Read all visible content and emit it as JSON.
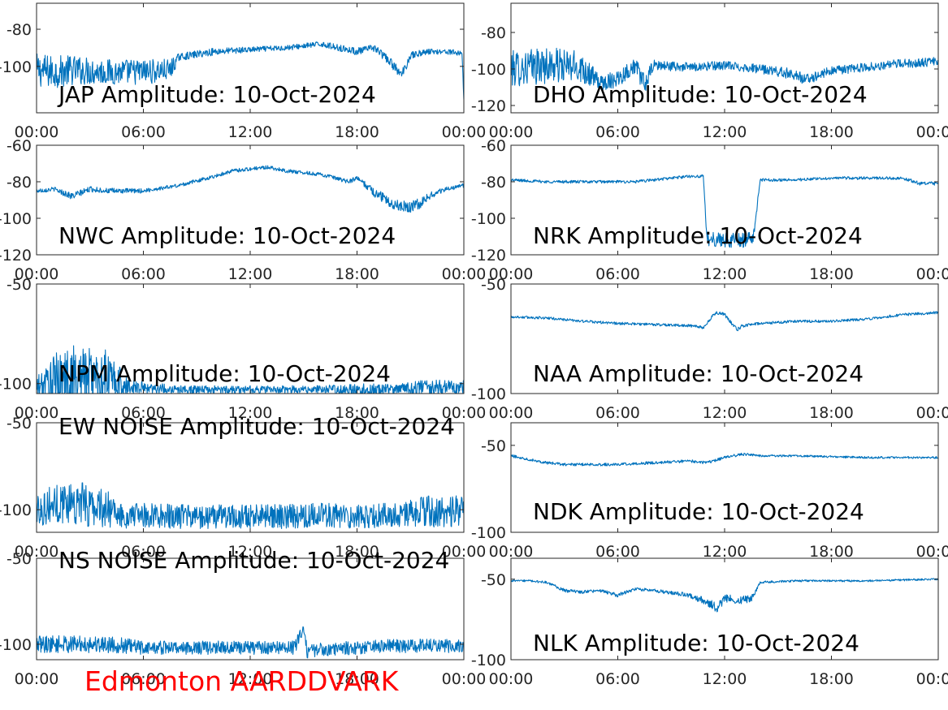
{
  "footer_label": "Edmonton AARDDVARK",
  "colors": {
    "trace": "#0072bd",
    "footer": "#ff0000",
    "axes": "#262626",
    "background": "#ffffff"
  },
  "chart_data": [
    {
      "type": "line",
      "title": "JAP Amplitude: 10-Oct-2024",
      "xlabel": "",
      "ylabel": "",
      "x_ticks": [
        "00:00",
        "06:00",
        "12:00",
        "18:00",
        "00:00"
      ],
      "y_ticks": [
        -80,
        -100
      ],
      "y_tick_labels": [
        "-80",
        "-100"
      ],
      "ylim": [
        -125,
        -66
      ],
      "grid": false,
      "legend": "none",
      "series": [
        {
          "x_hours": [
            0,
            1,
            2,
            4,
            6,
            7.5,
            8,
            10,
            12,
            14,
            16,
            18,
            19,
            20,
            20.5,
            21,
            22,
            23,
            23.9,
            24
          ],
          "values": [
            -102,
            -103,
            -102,
            -103,
            -103,
            -102,
            -95,
            -92,
            -91,
            -90,
            -88,
            -92,
            -90,
            -99,
            -105,
            -94,
            -92,
            -92,
            -93,
            -116
          ],
          "noise": [
            9,
            9,
            8,
            7,
            7,
            6,
            2,
            2,
            1.5,
            1.5,
            1.5,
            2,
            2,
            2.5,
            3,
            2,
            1.5,
            1.5,
            1.5,
            4
          ]
        }
      ]
    },
    {
      "type": "line",
      "title": "DHO Amplitude: 10-Oct-2024",
      "xlabel": "",
      "ylabel": "",
      "x_ticks": [
        "00:00",
        "06:00",
        "12:00",
        "18:00",
        "00:00"
      ],
      "y_ticks": [
        -80,
        -100,
        -120
      ],
      "y_tick_labels": [
        "-80",
        "-100",
        "-120"
      ],
      "ylim": [
        -124,
        -64
      ],
      "grid": false,
      "legend": "none",
      "series": [
        {
          "x_hours": [
            0,
            2,
            4,
            5,
            6,
            7,
            7.5,
            8,
            10,
            12,
            14,
            16,
            16.5,
            18,
            20,
            22,
            24
          ],
          "values": [
            -100,
            -98,
            -99,
            -108,
            -105,
            -98,
            -109,
            -98,
            -99,
            -98,
            -100,
            -103,
            -106,
            -101,
            -99,
            -97,
            -96
          ],
          "noise": [
            10,
            10,
            9,
            4,
            5,
            4,
            6,
            3,
            2.5,
            2.5,
            2.5,
            3,
            3,
            2.5,
            2.5,
            2.5,
            2.5
          ]
        }
      ]
    },
    {
      "type": "line",
      "title": "NWC Amplitude: 10-Oct-2024",
      "xlabel": "",
      "ylabel": "",
      "x_ticks": [
        "00:00",
        "06:00",
        "12:00",
        "18:00",
        "00:00"
      ],
      "y_ticks": [
        -60,
        -80,
        -100,
        -120
      ],
      "y_tick_labels": [
        "-60",
        "-80",
        "-100",
        "-120"
      ],
      "ylim": [
        -120,
        -60
      ],
      "grid": false,
      "legend": "none",
      "series": [
        {
          "x_hours": [
            0,
            1,
            2,
            3,
            4,
            6,
            8,
            10,
            11,
            12,
            13,
            14,
            16,
            17.5,
            18,
            19,
            20,
            21,
            21.5,
            22,
            23,
            24
          ],
          "values": [
            -85,
            -84,
            -88,
            -84,
            -85,
            -85,
            -82,
            -77,
            -74,
            -73,
            -72,
            -74,
            -76,
            -80,
            -78,
            -86,
            -92,
            -94,
            -92,
            -88,
            -84,
            -82
          ],
          "noise": [
            1.2,
            1.2,
            2,
            1.5,
            1.5,
            1.2,
            1,
            1,
            1,
            1,
            1,
            1,
            1,
            1.2,
            1.2,
            2.5,
            3,
            3,
            3,
            2,
            1.2,
            1.2
          ]
        }
      ]
    },
    {
      "type": "line",
      "title": "NRK Amplitude: 10-Oct-2024",
      "xlabel": "",
      "ylabel": "",
      "x_ticks": [
        "00:00",
        "06:00",
        "12:00",
        "18:00",
        "00:00"
      ],
      "y_ticks": [
        -60,
        -80,
        -100,
        -120
      ],
      "y_tick_labels": [
        "-60",
        "-80",
        "-100",
        "-120"
      ],
      "ylim": [
        -120,
        -60
      ],
      "grid": false,
      "legend": "none",
      "series": [
        {
          "x_hours": [
            0,
            2,
            4,
            6,
            7,
            8,
            10,
            10.8,
            11,
            12,
            13,
            13.6,
            14,
            16,
            18,
            20,
            22,
            23,
            24
          ],
          "values": [
            -79,
            -80,
            -80,
            -80,
            -80,
            -79,
            -77,
            -77,
            -111,
            -112,
            -112,
            -111,
            -79,
            -79,
            -78,
            -78,
            -78,
            -81,
            -81
          ],
          "noise": [
            0.8,
            0.8,
            0.8,
            0.8,
            0.8,
            0.8,
            0.8,
            0.8,
            4,
            4,
            4,
            4,
            0.8,
            0.8,
            0.8,
            0.8,
            0.8,
            1,
            1
          ]
        }
      ]
    },
    {
      "type": "line",
      "title": "NPM Amplitude: 10-Oct-2024",
      "xlabel": "",
      "ylabel": "",
      "x_ticks": [
        "00:00",
        "06:00",
        "12:00",
        "18:00",
        "00:00"
      ],
      "y_ticks": [
        -50,
        -100
      ],
      "y_tick_labels": [
        "-50",
        "-100"
      ],
      "ylim": [
        -105,
        -50
      ],
      "grid": false,
      "legend": "none",
      "series": [
        {
          "x_hours": [
            0,
            1,
            2,
            3,
            4,
            5,
            6,
            8,
            10,
            12,
            14,
            16,
            18,
            20,
            22,
            24
          ],
          "values": [
            -102,
            -98,
            -96,
            -96,
            -97,
            -101,
            -102,
            -103,
            -103,
            -103,
            -103,
            -103,
            -103,
            -103,
            -102,
            -102
          ],
          "noise": [
            5,
            13,
            15,
            15,
            14,
            5,
            3,
            2,
            2,
            2,
            2,
            2,
            3,
            3,
            4,
            4
          ]
        }
      ]
    },
    {
      "type": "line",
      "title": "NAA Amplitude: 10-Oct-2024",
      "xlabel": "",
      "ylabel": "",
      "x_ticks": [
        "00:00",
        "06:00",
        "12:00",
        "18:00",
        "00:00"
      ],
      "y_ticks": [
        -50,
        -100
      ],
      "y_tick_labels": [
        "-50",
        "-100"
      ],
      "ylim": [
        -100,
        -50
      ],
      "grid": false,
      "legend": "none",
      "series": [
        {
          "x_hours": [
            0,
            2,
            4,
            6,
            8,
            10,
            10.8,
            11.5,
            12,
            12.7,
            13,
            14,
            16,
            18,
            20,
            22,
            24
          ],
          "values": [
            -65,
            -65.5,
            -67,
            -68,
            -68.5,
            -69,
            -70,
            -63,
            -64,
            -71,
            -69,
            -68,
            -67,
            -67,
            -66,
            -64,
            -63
          ],
          "noise": [
            0.6,
            0.6,
            0.6,
            0.6,
            0.6,
            0.6,
            0.8,
            0.8,
            0.8,
            0.8,
            0.8,
            0.6,
            0.6,
            0.6,
            0.6,
            0.6,
            0.6
          ]
        }
      ]
    },
    {
      "type": "line",
      "title": "EW NOISE Amplitude: 10-Oct-2024",
      "xlabel": "",
      "ylabel": "",
      "x_ticks": [
        "00:00",
        "06:00",
        "12:00",
        "18:00",
        "00:00"
      ],
      "y_ticks": [
        -50,
        -100
      ],
      "y_tick_labels": [
        "-50",
        "-100"
      ],
      "ylim": [
        -113,
        -50
      ],
      "grid": false,
      "legend": "none",
      "series": [
        {
          "x_hours": [
            0,
            1,
            2,
            3,
            4,
            4.5,
            6,
            8,
            10,
            12,
            14,
            16,
            18,
            20,
            22,
            24
          ],
          "values": [
            -100,
            -97,
            -95,
            -98,
            -99,
            -104,
            -103,
            -104,
            -104,
            -104,
            -104,
            -103,
            -104,
            -103,
            -101,
            -101
          ],
          "noise": [
            9,
            12,
            13,
            12,
            11,
            7,
            7,
            7,
            7,
            7,
            7,
            7,
            7,
            7,
            9,
            9
          ]
        }
      ]
    },
    {
      "type": "line",
      "title": "NDK Amplitude: 10-Oct-2024",
      "xlabel": "",
      "ylabel": "",
      "x_ticks": [
        "00:00",
        "06:00",
        "12:00",
        "18:00",
        "00:00"
      ],
      "y_ticks": [
        -50,
        -100
      ],
      "y_tick_labels": [
        "-50",
        "-100"
      ],
      "ylim": [
        -100,
        -37
      ],
      "grid": false,
      "legend": "none",
      "series": [
        {
          "x_hours": [
            0,
            1,
            2,
            3,
            4,
            6,
            8,
            10,
            11,
            12,
            13,
            14,
            16,
            18,
            20,
            22,
            24
          ],
          "values": [
            -56,
            -58,
            -60,
            -61,
            -61,
            -61,
            -60,
            -59,
            -60,
            -57,
            -55,
            -56,
            -56,
            -56.5,
            -57,
            -57,
            -57
          ],
          "noise": [
            0.8,
            0.8,
            0.8,
            0.8,
            0.8,
            0.8,
            0.8,
            0.8,
            0.8,
            0.8,
            0.8,
            0.6,
            0.6,
            0.6,
            0.6,
            0.6,
            0.6
          ]
        }
      ]
    },
    {
      "type": "line",
      "title": "NS NOISE Amplitude: 10-Oct-2024",
      "xlabel": "",
      "ylabel": "",
      "x_ticks": [
        "00:00",
        "06:00",
        "12:00",
        "18:00",
        "00:00"
      ],
      "y_ticks": [
        -50,
        -100
      ],
      "y_tick_labels": [
        "-50",
        "-100"
      ],
      "ylim": [
        -109,
        -50
      ],
      "grid": false,
      "legend": "none",
      "series": [
        {
          "x_hours": [
            0,
            2,
            4,
            6,
            8,
            10,
            12,
            14,
            14.5,
            15,
            15.2,
            16,
            18,
            20,
            22,
            24
          ],
          "values": [
            -100,
            -100,
            -100,
            -102,
            -102,
            -102,
            -102,
            -102,
            -102,
            -90,
            -104,
            -103,
            -102,
            -101,
            -101,
            -101
          ],
          "noise": [
            5,
            5,
            5,
            4,
            4,
            4,
            4,
            4,
            4,
            3,
            4,
            4,
            4,
            4,
            4,
            4
          ]
        }
      ]
    },
    {
      "type": "line",
      "title": "NLK Amplitude: 10-Oct-2024",
      "xlabel": "",
      "ylabel": "",
      "x_ticks": [
        "00:00",
        "06:00",
        "12:00",
        "18:00",
        "00:00"
      ],
      "y_ticks": [
        -50,
        -100
      ],
      "y_tick_labels": [
        "-50",
        "-100"
      ],
      "ylim": [
        -100,
        -37
      ],
      "grid": false,
      "legend": "none",
      "series": [
        {
          "x_hours": [
            0,
            1,
            2,
            3,
            4,
            5,
            6,
            7,
            8,
            10,
            11,
            11.6,
            12,
            13,
            13.5,
            14,
            16,
            18,
            20,
            22,
            24
          ],
          "values": [
            -51,
            -51,
            -52,
            -57,
            -58,
            -57,
            -60,
            -56,
            -57,
            -60,
            -64,
            -68,
            -62,
            -63,
            -62,
            -52,
            -51,
            -51,
            -51,
            -50.5,
            -50
          ],
          "noise": [
            0.6,
            0.6,
            0.8,
            1,
            1,
            1,
            1.2,
            1,
            1,
            1.5,
            2.5,
            3,
            2.5,
            2.5,
            2,
            0.8,
            0.6,
            0.6,
            0.6,
            0.6,
            0.6
          ]
        }
      ]
    }
  ]
}
